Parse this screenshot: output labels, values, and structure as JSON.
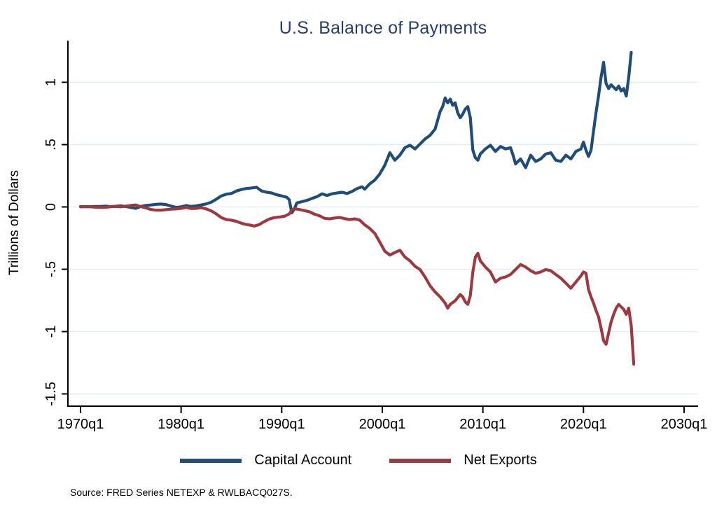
{
  "figure": {
    "source_note": "Source: FRED Series NETEXP & RWLBACQ027S.",
    "colors": {
      "title": "#273e6d",
      "axis": "#000000",
      "gridline": "#e3edf4",
      "background": "#ffffff",
      "capital_account": "#1f4d78",
      "net_exports": "#9c3a42"
    }
  },
  "chart_data": {
    "type": "line",
    "title": "U.S. Balance of Payments",
    "xlabel": "",
    "ylabel": "Trillions of Dollars",
    "x_unit": "quarterly decimal year (q1=.0, q2=.25, q3=.5, q4=.75)",
    "xlim": [
      1968.7,
      2031.4
    ],
    "ylim": [
      -1.6,
      1.33
    ],
    "grid": "horizontal-only",
    "xticks": {
      "labels": [
        "1970q1",
        "1980q1",
        "1990q1",
        "2000q1",
        "2010q1",
        "2020q1",
        "2030q1"
      ],
      "values": [
        1970,
        1980,
        1990,
        2000,
        2010,
        2020,
        2030
      ]
    },
    "yticks": {
      "labels": [
        "1",
        ".5",
        "0",
        "-.5",
        "-1",
        "-1.5"
      ],
      "values": [
        1,
        0.5,
        0,
        -0.5,
        -1,
        -1.5
      ]
    },
    "legend": {
      "position": "bottom-center",
      "entries": [
        "Capital Account",
        "Net Exports"
      ]
    },
    "series": [
      {
        "name": "Capital Account",
        "color": "#1f4d78",
        "points": [
          [
            1970,
            0.001
          ],
          [
            1970.5,
            0.003
          ],
          [
            1971,
            0.002
          ],
          [
            1971.5,
            0.004
          ],
          [
            1972,
            0.004
          ],
          [
            1972.5,
            0.006
          ],
          [
            1973,
            0.002
          ],
          [
            1973.5,
            0.005
          ],
          [
            1974,
            0.009
          ],
          [
            1974.5,
            0.004
          ],
          [
            1975,
            -0.004
          ],
          [
            1975.5,
            -0.012
          ],
          [
            1976,
            0.004
          ],
          [
            1976.5,
            0.012
          ],
          [
            1977,
            0.016
          ],
          [
            1977.5,
            0.021
          ],
          [
            1978,
            0.023
          ],
          [
            1978.5,
            0.019
          ],
          [
            1979,
            0.007
          ],
          [
            1979.5,
            -0.004
          ],
          [
            1980,
            0.001
          ],
          [
            1980.5,
            0.011
          ],
          [
            1981,
            0.004
          ],
          [
            1981.5,
            0.009
          ],
          [
            1982,
            0.016
          ],
          [
            1982.5,
            0.024
          ],
          [
            1983,
            0.038
          ],
          [
            1983.5,
            0.062
          ],
          [
            1984,
            0.088
          ],
          [
            1984.5,
            0.102
          ],
          [
            1985,
            0.108
          ],
          [
            1985.5,
            0.128
          ],
          [
            1986,
            0.14
          ],
          [
            1986.5,
            0.148
          ],
          [
            1987,
            0.152
          ],
          [
            1987.5,
            0.158
          ],
          [
            1988,
            0.128
          ],
          [
            1988.5,
            0.118
          ],
          [
            1989,
            0.112
          ],
          [
            1989.5,
            0.098
          ],
          [
            1990,
            0.088
          ],
          [
            1990.5,
            0.078
          ],
          [
            1990.75,
            0.058
          ],
          [
            1991,
            -0.048
          ],
          [
            1991.25,
            -0.018
          ],
          [
            1991.5,
            0.032
          ],
          [
            1992,
            0.042
          ],
          [
            1992.5,
            0.052
          ],
          [
            1993,
            0.068
          ],
          [
            1993.5,
            0.082
          ],
          [
            1994,
            0.105
          ],
          [
            1994.5,
            0.092
          ],
          [
            1995,
            0.105
          ],
          [
            1995.5,
            0.112
          ],
          [
            1996,
            0.118
          ],
          [
            1996.5,
            0.108
          ],
          [
            1997,
            0.125
          ],
          [
            1997.5,
            0.148
          ],
          [
            1998,
            0.162
          ],
          [
            1998.25,
            0.142
          ],
          [
            1998.75,
            0.185
          ],
          [
            1999.25,
            0.215
          ],
          [
            1999.75,
            0.265
          ],
          [
            2000.25,
            0.335
          ],
          [
            2000.75,
            0.435
          ],
          [
            2001.25,
            0.375
          ],
          [
            2001.75,
            0.415
          ],
          [
            2002.25,
            0.475
          ],
          [
            2002.75,
            0.495
          ],
          [
            2003.25,
            0.465
          ],
          [
            2003.75,
            0.505
          ],
          [
            2004.25,
            0.545
          ],
          [
            2004.75,
            0.575
          ],
          [
            2005.25,
            0.625
          ],
          [
            2005.75,
            0.765
          ],
          [
            2006,
            0.805
          ],
          [
            2006.25,
            0.875
          ],
          [
            2006.5,
            0.835
          ],
          [
            2006.75,
            0.865
          ],
          [
            2007,
            0.815
          ],
          [
            2007.25,
            0.835
          ],
          [
            2007.5,
            0.755
          ],
          [
            2007.75,
            0.715
          ],
          [
            2008,
            0.745
          ],
          [
            2008.25,
            0.785
          ],
          [
            2008.5,
            0.805
          ],
          [
            2008.75,
            0.715
          ],
          [
            2009,
            0.455
          ],
          [
            2009.25,
            0.395
          ],
          [
            2009.5,
            0.375
          ],
          [
            2009.75,
            0.425
          ],
          [
            2010.25,
            0.465
          ],
          [
            2010.75,
            0.495
          ],
          [
            2011.25,
            0.445
          ],
          [
            2011.75,
            0.485
          ],
          [
            2012.25,
            0.465
          ],
          [
            2012.75,
            0.475
          ],
          [
            2013,
            0.415
          ],
          [
            2013.25,
            0.345
          ],
          [
            2013.75,
            0.385
          ],
          [
            2014.25,
            0.315
          ],
          [
            2014.75,
            0.415
          ],
          [
            2015.25,
            0.365
          ],
          [
            2015.75,
            0.385
          ],
          [
            2016.25,
            0.425
          ],
          [
            2016.75,
            0.435
          ],
          [
            2017.25,
            0.375
          ],
          [
            2017.75,
            0.365
          ],
          [
            2018.25,
            0.415
          ],
          [
            2018.75,
            0.385
          ],
          [
            2019.25,
            0.445
          ],
          [
            2019.75,
            0.465
          ],
          [
            2020,
            0.52
          ],
          [
            2020.25,
            0.455
          ],
          [
            2020.5,
            0.405
          ],
          [
            2020.75,
            0.455
          ],
          [
            2021,
            0.61
          ],
          [
            2021.25,
            0.76
          ],
          [
            2021.5,
            0.89
          ],
          [
            2021.75,
            1.04
          ],
          [
            2022,
            1.16
          ],
          [
            2022.25,
            0.99
          ],
          [
            2022.5,
            0.95
          ],
          [
            2022.75,
            0.98
          ],
          [
            2023,
            0.96
          ],
          [
            2023.25,
            0.94
          ],
          [
            2023.5,
            0.97
          ],
          [
            2023.75,
            0.93
          ],
          [
            2024,
            0.95
          ],
          [
            2024.25,
            0.89
          ],
          [
            2024.5,
            1.04
          ],
          [
            2024.75,
            1.24
          ]
        ]
      },
      {
        "name": "Net Exports",
        "color": "#9c3a42",
        "points": [
          [
            1970,
            0.004
          ],
          [
            1970.5,
            0.002
          ],
          [
            1971,
            0.001
          ],
          [
            1971.5,
            -0.002
          ],
          [
            1972,
            -0.004
          ],
          [
            1972.5,
            -0.003
          ],
          [
            1973,
            0.003
          ],
          [
            1973.5,
            0.004
          ],
          [
            1974,
            0.001
          ],
          [
            1974.5,
            0.006
          ],
          [
            1975,
            0.012
          ],
          [
            1975.5,
            0.016
          ],
          [
            1976,
            0.002
          ],
          [
            1976.5,
            -0.008
          ],
          [
            1977,
            -0.021
          ],
          [
            1977.5,
            -0.026
          ],
          [
            1978,
            -0.026
          ],
          [
            1978.5,
            -0.022
          ],
          [
            1979,
            -0.018
          ],
          [
            1979.5,
            -0.016
          ],
          [
            1980,
            -0.011
          ],
          [
            1980.5,
            -0.004
          ],
          [
            1981,
            -0.013
          ],
          [
            1981.5,
            -0.011
          ],
          [
            1982,
            -0.006
          ],
          [
            1982.5,
            -0.016
          ],
          [
            1983,
            -0.032
          ],
          [
            1983.5,
            -0.056
          ],
          [
            1984,
            -0.086
          ],
          [
            1984.5,
            -0.101
          ],
          [
            1985,
            -0.106
          ],
          [
            1985.5,
            -0.116
          ],
          [
            1986,
            -0.131
          ],
          [
            1986.5,
            -0.141
          ],
          [
            1987,
            -0.148
          ],
          [
            1987.25,
            -0.154
          ],
          [
            1987.75,
            -0.142
          ],
          [
            1988.25,
            -0.118
          ],
          [
            1988.75,
            -0.098
          ],
          [
            1989.25,
            -0.086
          ],
          [
            1989.75,
            -0.081
          ],
          [
            1990.25,
            -0.076
          ],
          [
            1990.75,
            -0.056
          ],
          [
            1991,
            -0.026
          ],
          [
            1991.25,
            -0.014
          ],
          [
            1991.75,
            -0.021
          ],
          [
            1992.25,
            -0.029
          ],
          [
            1992.75,
            -0.039
          ],
          [
            1993.25,
            -0.058
          ],
          [
            1993.75,
            -0.071
          ],
          [
            1994.25,
            -0.091
          ],
          [
            1994.75,
            -0.096
          ],
          [
            1995.25,
            -0.089
          ],
          [
            1995.75,
            -0.084
          ],
          [
            1996.25,
            -0.094
          ],
          [
            1996.75,
            -0.101
          ],
          [
            1997.25,
            -0.096
          ],
          [
            1997.75,
            -0.105
          ],
          [
            1998.25,
            -0.143
          ],
          [
            1998.75,
            -0.172
          ],
          [
            1999.25,
            -0.212
          ],
          [
            1999.75,
            -0.282
          ],
          [
            2000.25,
            -0.355
          ],
          [
            2000.75,
            -0.386
          ],
          [
            2001.25,
            -0.366
          ],
          [
            2001.75,
            -0.348
          ],
          [
            2002.25,
            -0.402
          ],
          [
            2002.75,
            -0.432
          ],
          [
            2003.25,
            -0.476
          ],
          [
            2003.75,
            -0.502
          ],
          [
            2004.25,
            -0.562
          ],
          [
            2004.75,
            -0.632
          ],
          [
            2005.25,
            -0.682
          ],
          [
            2005.75,
            -0.722
          ],
          [
            2006.25,
            -0.772
          ],
          [
            2006.5,
            -0.812
          ],
          [
            2006.75,
            -0.782
          ],
          [
            2007.25,
            -0.752
          ],
          [
            2007.75,
            -0.702
          ],
          [
            2008,
            -0.722
          ],
          [
            2008.25,
            -0.762
          ],
          [
            2008.5,
            -0.782
          ],
          [
            2008.75,
            -0.712
          ],
          [
            2009,
            -0.522
          ],
          [
            2009.25,
            -0.402
          ],
          [
            2009.5,
            -0.372
          ],
          [
            2009.75,
            -0.432
          ],
          [
            2010.25,
            -0.482
          ],
          [
            2010.75,
            -0.522
          ],
          [
            2011.25,
            -0.602
          ],
          [
            2011.75,
            -0.572
          ],
          [
            2012.25,
            -0.562
          ],
          [
            2012.75,
            -0.542
          ],
          [
            2013.25,
            -0.502
          ],
          [
            2013.75,
            -0.462
          ],
          [
            2014.25,
            -0.482
          ],
          [
            2014.75,
            -0.512
          ],
          [
            2015.25,
            -0.532
          ],
          [
            2015.75,
            -0.522
          ],
          [
            2016.25,
            -0.502
          ],
          [
            2016.75,
            -0.512
          ],
          [
            2017.25,
            -0.542
          ],
          [
            2017.75,
            -0.572
          ],
          [
            2018.25,
            -0.612
          ],
          [
            2018.75,
            -0.652
          ],
          [
            2019.25,
            -0.602
          ],
          [
            2019.75,
            -0.552
          ],
          [
            2020,
            -0.522
          ],
          [
            2020.25,
            -0.532
          ],
          [
            2020.5,
            -0.662
          ],
          [
            2020.75,
            -0.722
          ],
          [
            2021,
            -0.772
          ],
          [
            2021.25,
            -0.832
          ],
          [
            2021.5,
            -0.882
          ],
          [
            2021.75,
            -0.972
          ],
          [
            2022,
            -1.072
          ],
          [
            2022.25,
            -1.102
          ],
          [
            2022.5,
            -1.012
          ],
          [
            2022.75,
            -0.922
          ],
          [
            2023,
            -0.862
          ],
          [
            2023.25,
            -0.812
          ],
          [
            2023.5,
            -0.782
          ],
          [
            2023.75,
            -0.802
          ],
          [
            2024,
            -0.822
          ],
          [
            2024.25,
            -0.862
          ],
          [
            2024.5,
            -0.812
          ],
          [
            2024.75,
            -0.952
          ],
          [
            2025,
            -1.262
          ]
        ]
      }
    ]
  }
}
